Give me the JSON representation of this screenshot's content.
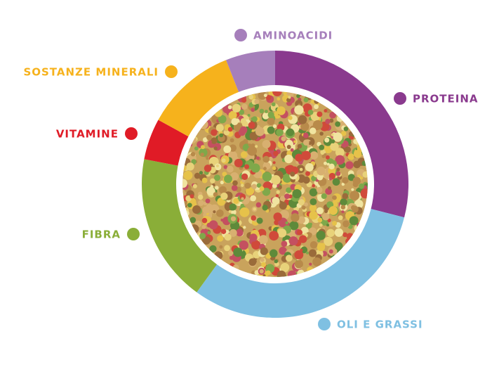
{
  "chart_data": {
    "type": "donut",
    "categories": [
      "PROTEINA",
      "OLI E GRASSI",
      "FIBRA",
      "VITAMINE",
      "SOSTANZE MINERALI",
      "AMINOACIDI"
    ],
    "values": [
      29,
      31,
      18,
      5,
      11,
      6
    ],
    "colors": [
      "#8a3a8e",
      "#7fc0e2",
      "#8aae38",
      "#e01b26",
      "#f6b21c",
      "#a67fbb"
    ]
  }
}
